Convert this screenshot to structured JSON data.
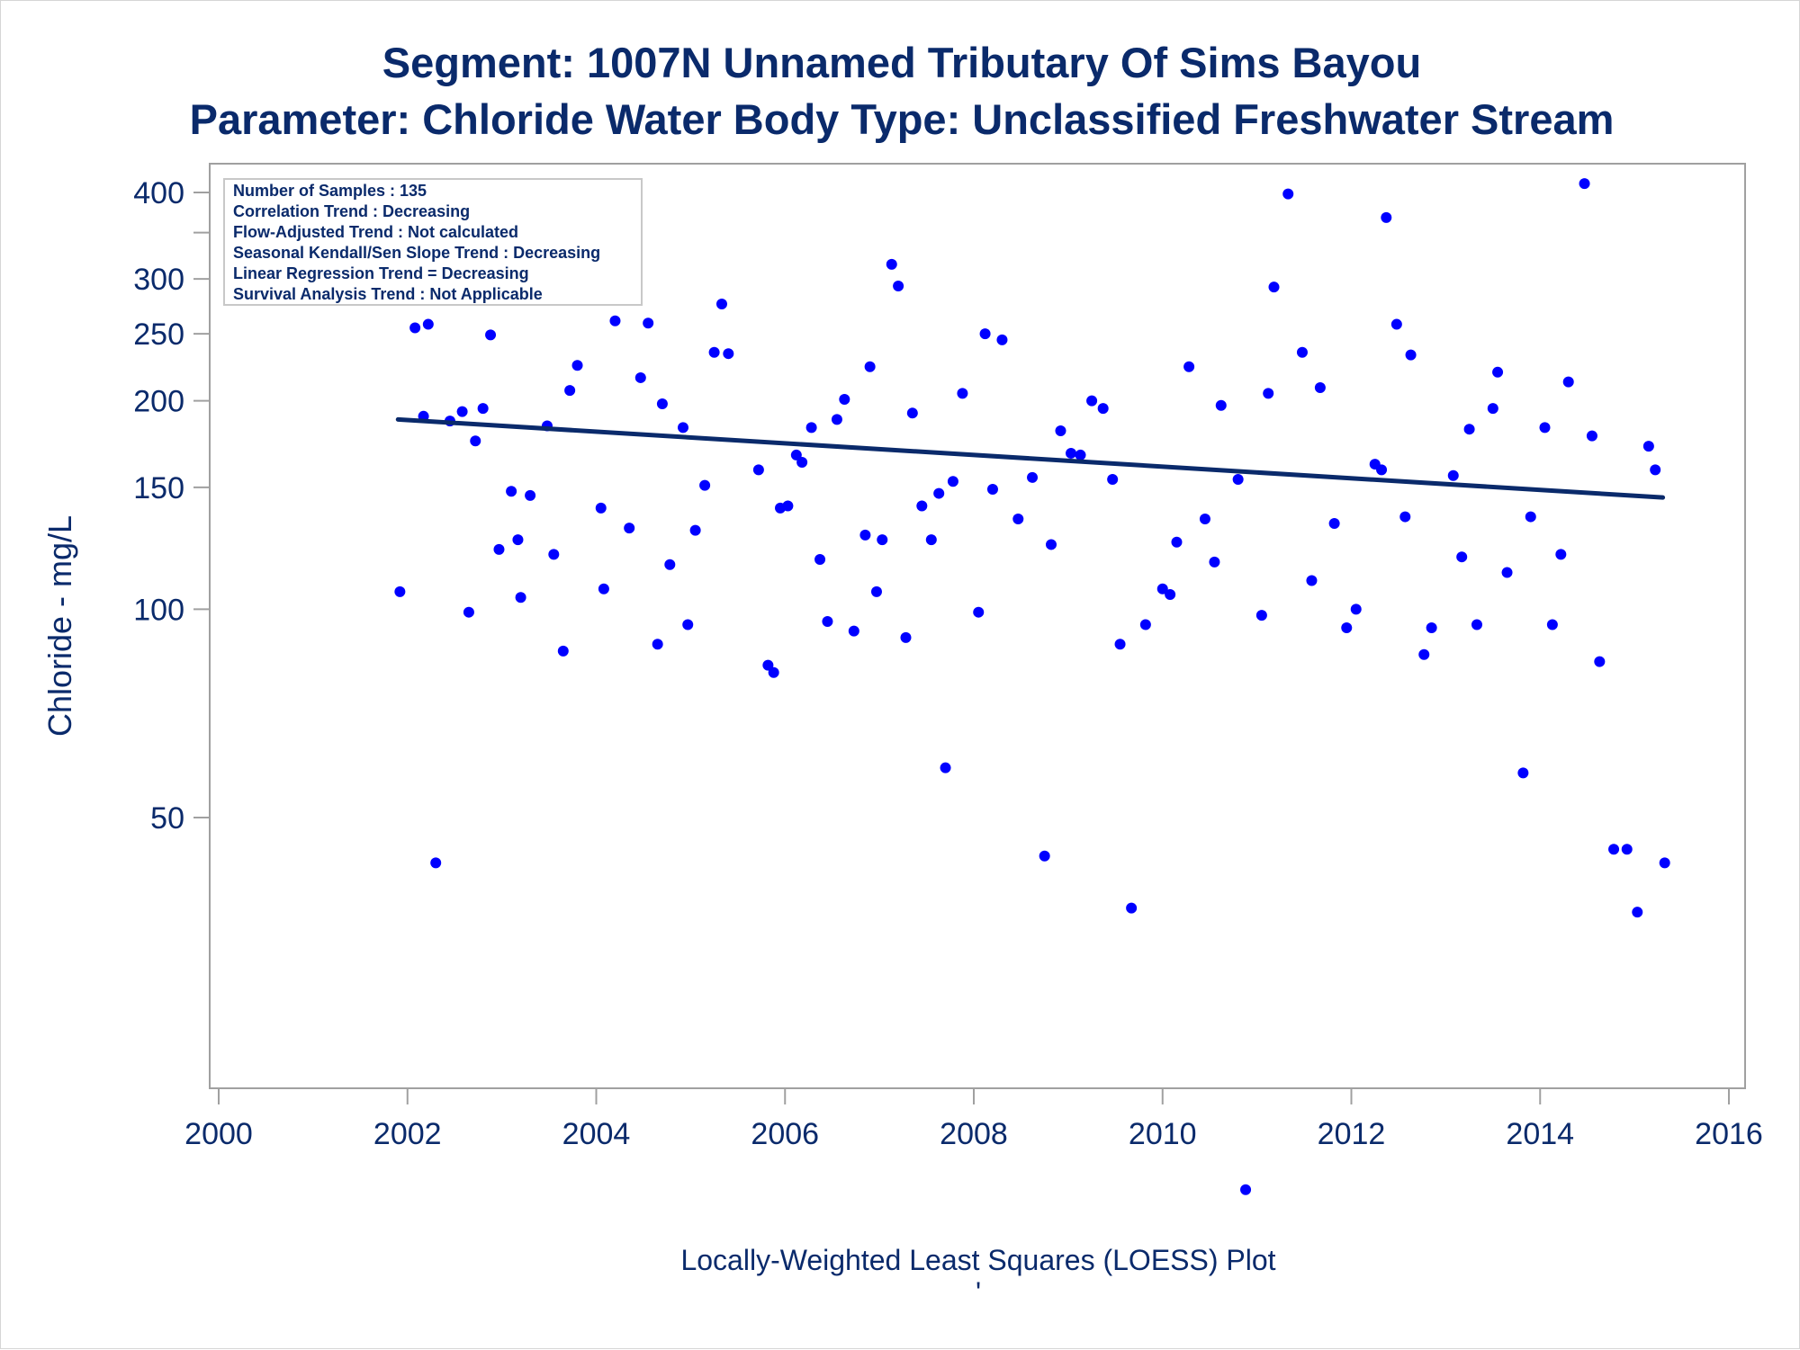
{
  "chart_data": {
    "type": "scatter",
    "title": "Segment: 1007N  Unnamed Tributary Of Sims Bayou",
    "subtitle": "Parameter: Chloride   Water Body Type: Unclassified Freshwater Stream",
    "xlabel": "",
    "ylabel": "Chloride - mg/L",
    "caption": "Locally-Weighted Least Squares (LOESS) Plot",
    "caption_mark": "'",
    "xlim": [
      2000,
      2016
    ],
    "ylim": [
      14,
      420
    ],
    "yscale": "log",
    "x_ticks": [
      "2000",
      "2002",
      "2004",
      "2006",
      "2008",
      "2010",
      "2012",
      "2014",
      "2016"
    ],
    "y_ticks": [
      "50",
      "100",
      "150",
      "200",
      "250",
      "300",
      "400"
    ],
    "y_minor_ticks": [
      350
    ],
    "grid": false,
    "legend": "none",
    "annotation_position": "top-left",
    "annotation_lines": [
      "Number of Samples : 135",
      "Correlation Trend : Decreasing",
      "Flow-Adjusted Trend : Not calculated",
      "Seasonal Kendall/Sen Slope Trend : Decreasing",
      "Linear Regression Trend = Decreasing",
      "Survival Analysis Trend : Not Applicable"
    ],
    "colors": {
      "points": "#0000ff",
      "trend_line": "#0a2a6b",
      "text": "#0a2a6b",
      "frame": "#a0a0a0"
    },
    "trend_line": {
      "x": [
        2001.9,
        2015.3
      ],
      "y": [
        188,
        145
      ]
    },
    "points": [
      [
        2001.92,
        106
      ],
      [
        2002.08,
        255
      ],
      [
        2002.17,
        190
      ],
      [
        2002.22,
        258
      ],
      [
        2002.3,
        43
      ],
      [
        2002.37,
        288
      ],
      [
        2002.45,
        187
      ],
      [
        2002.58,
        193
      ],
      [
        2002.65,
        99
      ],
      [
        2002.72,
        175
      ],
      [
        2002.8,
        195
      ],
      [
        2002.88,
        249
      ],
      [
        2002.97,
        122
      ],
      [
        2003.1,
        148
      ],
      [
        2003.17,
        126
      ],
      [
        2003.2,
        104
      ],
      [
        2003.3,
        146
      ],
      [
        2003.37,
        308
      ],
      [
        2003.48,
        184
      ],
      [
        2003.55,
        120
      ],
      [
        2003.65,
        87
      ],
      [
        2003.72,
        207
      ],
      [
        2003.8,
        225
      ],
      [
        2003.9,
        284
      ],
      [
        2003.96,
        317
      ],
      [
        2004.05,
        140
      ],
      [
        2004.08,
        107
      ],
      [
        2004.2,
        261
      ],
      [
        2004.3,
        398
      ],
      [
        2004.35,
        131
      ],
      [
        2004.47,
        216
      ],
      [
        2004.55,
        259
      ],
      [
        2004.65,
        89
      ],
      [
        2004.7,
        198
      ],
      [
        2004.78,
        116
      ],
      [
        2004.92,
        183
      ],
      [
        2004.97,
        95
      ],
      [
        2005.05,
        130
      ],
      [
        2005.15,
        151
      ],
      [
        2005.25,
        235
      ],
      [
        2005.33,
        276
      ],
      [
        2005.4,
        234
      ],
      [
        2005.72,
        159
      ],
      [
        2005.82,
        83
      ],
      [
        2005.88,
        81
      ],
      [
        2005.95,
        140
      ],
      [
        2006.03,
        141
      ],
      [
        2006.12,
        167
      ],
      [
        2006.18,
        163
      ],
      [
        2006.28,
        183
      ],
      [
        2006.37,
        118
      ],
      [
        2006.45,
        96
      ],
      [
        2006.55,
        188
      ],
      [
        2006.63,
        201
      ],
      [
        2006.73,
        93
      ],
      [
        2006.85,
        128
      ],
      [
        2006.9,
        224
      ],
      [
        2006.97,
        106
      ],
      [
        2007.03,
        126
      ],
      [
        2007.13,
        315
      ],
      [
        2007.2,
        293
      ],
      [
        2007.28,
        91
      ],
      [
        2007.35,
        192
      ],
      [
        2007.45,
        141
      ],
      [
        2007.55,
        126
      ],
      [
        2007.63,
        147
      ],
      [
        2007.7,
        59
      ],
      [
        2007.78,
        153
      ],
      [
        2007.88,
        205
      ],
      [
        2008.05,
        99
      ],
      [
        2008.12,
        250
      ],
      [
        2008.2,
        149
      ],
      [
        2008.3,
        245
      ],
      [
        2008.47,
        135
      ],
      [
        2008.62,
        155
      ],
      [
        2008.75,
        44
      ],
      [
        2008.82,
        124
      ],
      [
        2008.92,
        181
      ],
      [
        2009.03,
        168
      ],
      [
        2009.13,
        167
      ],
      [
        2009.25,
        200
      ],
      [
        2009.37,
        195
      ],
      [
        2009.47,
        154
      ],
      [
        2009.55,
        89
      ],
      [
        2009.67,
        37
      ],
      [
        2009.82,
        95
      ],
      [
        2010.0,
        107
      ],
      [
        2010.08,
        105
      ],
      [
        2010.15,
        125
      ],
      [
        2010.28,
        224
      ],
      [
        2010.45,
        135
      ],
      [
        2010.55,
        117
      ],
      [
        2010.62,
        197
      ],
      [
        2010.8,
        154
      ],
      [
        2010.88,
        14.5
      ],
      [
        2011.05,
        98
      ],
      [
        2011.12,
        205
      ],
      [
        2011.18,
        292
      ],
      [
        2011.33,
        398
      ],
      [
        2011.48,
        235
      ],
      [
        2011.58,
        110
      ],
      [
        2011.67,
        209
      ],
      [
        2011.82,
        133
      ],
      [
        2011.95,
        94
      ],
      [
        2012.05,
        100
      ],
      [
        2012.25,
        162
      ],
      [
        2012.32,
        159
      ],
      [
        2012.37,
        368
      ],
      [
        2012.48,
        258
      ],
      [
        2012.57,
        136
      ],
      [
        2012.63,
        233
      ],
      [
        2012.77,
        86
      ],
      [
        2012.85,
        94
      ],
      [
        2013.08,
        156
      ],
      [
        2013.17,
        119
      ],
      [
        2013.25,
        182
      ],
      [
        2013.33,
        95
      ],
      [
        2013.5,
        195
      ],
      [
        2013.55,
        220
      ],
      [
        2013.65,
        113
      ],
      [
        2013.82,
        58
      ],
      [
        2013.9,
        136
      ],
      [
        2014.05,
        183
      ],
      [
        2014.13,
        95
      ],
      [
        2014.22,
        120
      ],
      [
        2014.3,
        213
      ],
      [
        2014.47,
        412
      ],
      [
        2014.55,
        178
      ],
      [
        2014.63,
        84
      ],
      [
        2014.78,
        45
      ],
      [
        2014.92,
        45
      ],
      [
        2015.03,
        36.5
      ],
      [
        2015.15,
        172
      ],
      [
        2015.22,
        159
      ],
      [
        2015.32,
        43
      ]
    ]
  }
}
